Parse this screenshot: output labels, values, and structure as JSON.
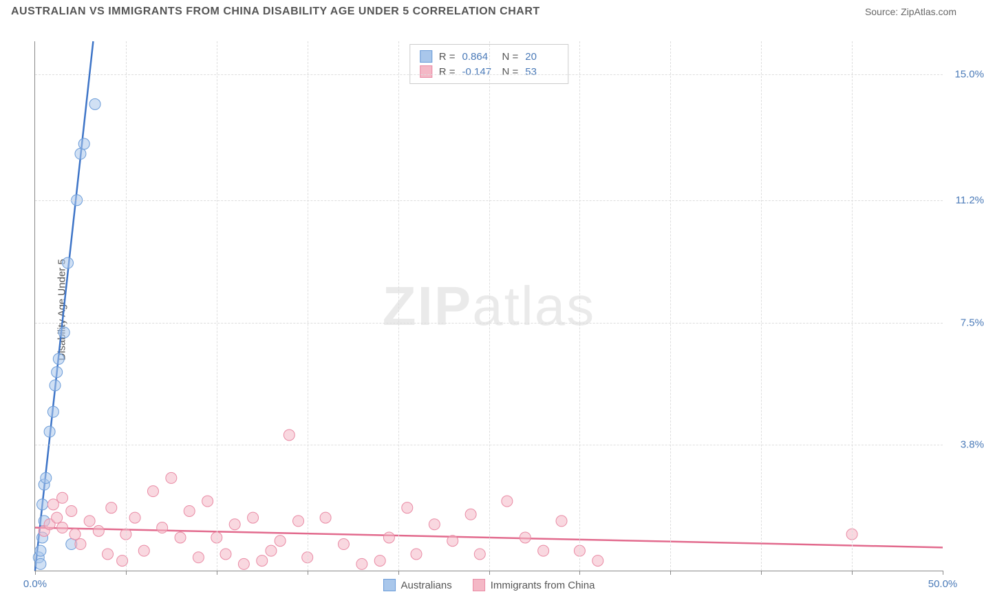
{
  "header": {
    "title": "AUSTRALIAN VS IMMIGRANTS FROM CHINA DISABILITY AGE UNDER 5 CORRELATION CHART",
    "source_prefix": "Source: ",
    "source": "ZipAtlas.com"
  },
  "watermark": {
    "bold": "ZIP",
    "rest": "atlas"
  },
  "chart": {
    "type": "scatter",
    "y_axis_title": "Disability Age Under 5",
    "background_color": "#ffffff",
    "grid_color": "#dddddd",
    "axis_color": "#888888",
    "tick_label_color": "#4a7ab8",
    "xlim": [
      0,
      50
    ],
    "ylim": [
      0,
      16
    ],
    "x_ticks": [
      {
        "v": 0,
        "label": "0.0%"
      },
      {
        "v": 5,
        "label": ""
      },
      {
        "v": 10,
        "label": ""
      },
      {
        "v": 15,
        "label": ""
      },
      {
        "v": 20,
        "label": ""
      },
      {
        "v": 25,
        "label": ""
      },
      {
        "v": 30,
        "label": ""
      },
      {
        "v": 35,
        "label": ""
      },
      {
        "v": 40,
        "label": ""
      },
      {
        "v": 45,
        "label": ""
      },
      {
        "v": 50,
        "label": "50.0%"
      }
    ],
    "y_ticks": [
      {
        "v": 3.8,
        "label": "3.8%"
      },
      {
        "v": 7.5,
        "label": "7.5%"
      },
      {
        "v": 11.2,
        "label": "11.2%"
      },
      {
        "v": 15.0,
        "label": "15.0%"
      }
    ],
    "marker_radius": 8,
    "marker_opacity": 0.55,
    "line_width": 2.5,
    "series": [
      {
        "key": "aus",
        "name": "Australians",
        "fill_color": "#a9c7eb",
        "stroke_color": "#6a9bd8",
        "line_color": "#3d74c7",
        "R": "0.864",
        "N": "20",
        "trend": {
          "x1": 0,
          "y1": 0,
          "x2": 3.2,
          "y2": 16
        },
        "points": [
          [
            0.2,
            0.4
          ],
          [
            0.3,
            0.6
          ],
          [
            0.4,
            1.0
          ],
          [
            0.5,
            1.5
          ],
          [
            0.4,
            2.0
          ],
          [
            0.5,
            2.6
          ],
          [
            0.6,
            2.8
          ],
          [
            0.8,
            4.2
          ],
          [
            1.0,
            4.8
          ],
          [
            1.1,
            5.6
          ],
          [
            1.2,
            6.0
          ],
          [
            1.3,
            6.4
          ],
          [
            1.6,
            7.2
          ],
          [
            1.8,
            9.3
          ],
          [
            2.3,
            11.2
          ],
          [
            2.5,
            12.6
          ],
          [
            2.7,
            12.9
          ],
          [
            3.3,
            14.1
          ],
          [
            2.0,
            0.8
          ],
          [
            0.3,
            0.2
          ]
        ]
      },
      {
        "key": "china",
        "name": "Immigrants from China",
        "fill_color": "#f4b8c6",
        "stroke_color": "#e98aa4",
        "line_color": "#e26a8d",
        "R": "-0.147",
        "N": "53",
        "trend": {
          "x1": 0,
          "y1": 1.3,
          "x2": 50,
          "y2": 0.7
        },
        "points": [
          [
            0.5,
            1.2
          ],
          [
            0.8,
            1.4
          ],
          [
            1.0,
            2.0
          ],
          [
            1.2,
            1.6
          ],
          [
            1.5,
            1.3
          ],
          [
            2.0,
            1.8
          ],
          [
            2.2,
            1.1
          ],
          [
            2.5,
            0.8
          ],
          [
            3.0,
            1.5
          ],
          [
            3.5,
            1.2
          ],
          [
            4.0,
            0.5
          ],
          [
            4.2,
            1.9
          ],
          [
            4.8,
            0.3
          ],
          [
            5.0,
            1.1
          ],
          [
            5.5,
            1.6
          ],
          [
            6.0,
            0.6
          ],
          [
            6.5,
            2.4
          ],
          [
            7.0,
            1.3
          ],
          [
            7.5,
            2.8
          ],
          [
            8.0,
            1.0
          ],
          [
            8.5,
            1.8
          ],
          [
            9.0,
            0.4
          ],
          [
            9.5,
            2.1
          ],
          [
            10.0,
            1.0
          ],
          [
            10.5,
            0.5
          ],
          [
            11.0,
            1.4
          ],
          [
            11.5,
            0.2
          ],
          [
            12.0,
            1.6
          ],
          [
            12.5,
            0.3
          ],
          [
            13.0,
            0.6
          ],
          [
            13.5,
            0.9
          ],
          [
            14.0,
            4.1
          ],
          [
            14.5,
            1.5
          ],
          [
            15.0,
            0.4
          ],
          [
            16.0,
            1.6
          ],
          [
            17.0,
            0.8
          ],
          [
            18.0,
            0.2
          ],
          [
            19.0,
            0.3
          ],
          [
            19.5,
            1.0
          ],
          [
            20.5,
            1.9
          ],
          [
            21.0,
            0.5
          ],
          [
            22.0,
            1.4
          ],
          [
            23.0,
            0.9
          ],
          [
            24.0,
            1.7
          ],
          [
            24.5,
            0.5
          ],
          [
            26.0,
            2.1
          ],
          [
            27.0,
            1.0
          ],
          [
            28.0,
            0.6
          ],
          [
            29.0,
            1.5
          ],
          [
            30.0,
            0.6
          ],
          [
            31.0,
            0.3
          ],
          [
            45.0,
            1.1
          ],
          [
            1.5,
            2.2
          ]
        ]
      }
    ],
    "legend_top": {
      "R_label": "R =",
      "N_label": "N ="
    }
  }
}
